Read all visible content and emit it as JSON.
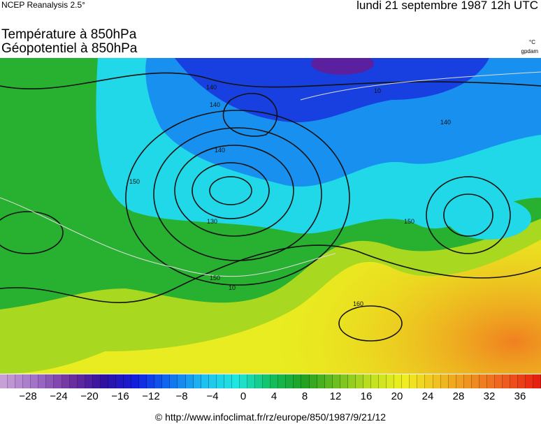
{
  "header": {
    "source": "NCEP Reanalysis 2.5°",
    "date": "lundi 21 septembre 1987 12h UTC",
    "title_line1": "Température à 850hPa",
    "title_line2": "Géopotentiel à 850hPa",
    "unit_temperature": "°C",
    "unit_geopotential": "gpdam"
  },
  "map": {
    "contour_labels": [
      "140",
      "140",
      "140",
      "130",
      "150",
      "150",
      "150",
      "160",
      "10",
      "10",
      "140"
    ]
  },
  "colorbar": {
    "labels": [
      "−28",
      "−24",
      "−20",
      "−16",
      "−12",
      "−8",
      "−4",
      "0",
      "4",
      "8",
      "12",
      "16",
      "20",
      "24",
      "28",
      "32",
      "36"
    ],
    "colors": [
      "#c8a0d8",
      "#a070c8",
      "#7030a0",
      "#3010a0",
      "#1020e0",
      "#1070f0",
      "#20c0f0",
      "#20e8e0",
      "#10c060",
      "#20a020",
      "#70c020",
      "#c0e020",
      "#f0f020",
      "#f0c020",
      "#f09020",
      "#f06020",
      "#e82010"
    ]
  },
  "footer": "© http://www.infoclimat.fr/rz/europe/850/1987/9/21/12"
}
